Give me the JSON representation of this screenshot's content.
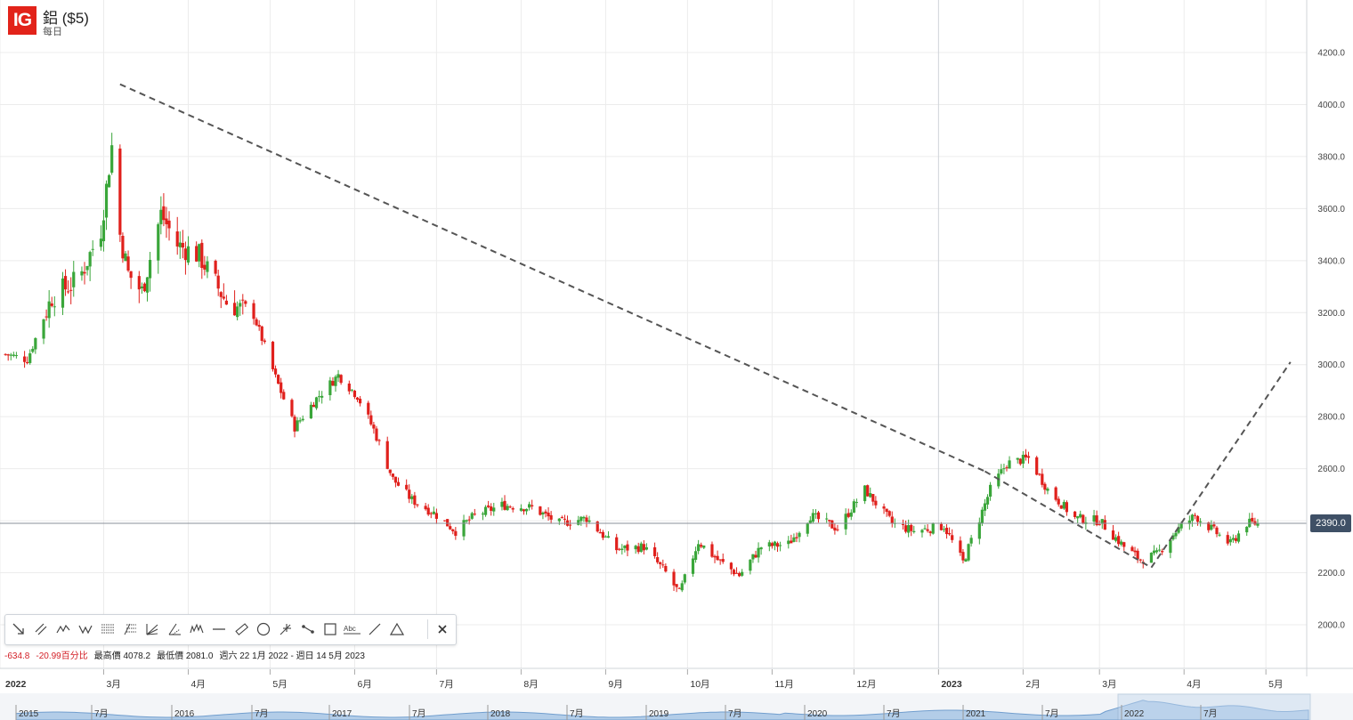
{
  "header": {
    "logo_text": "IG",
    "title": "鋁 ($5)",
    "interval": "每日"
  },
  "toolbar": {
    "tools": [
      "arrow-line-icon",
      "parallel-channel-icon",
      "zigzag-icon",
      "triangle-pattern-icon",
      "fib-retracement-icon",
      "fib-extension-icon",
      "fib-fan-icon",
      "gann-fan-icon",
      "elliott-wave-icon",
      "horizontal-line-icon",
      "ruler-icon",
      "circle-icon",
      "pitchfork-icon",
      "trend-line-icon",
      "rectangle-icon",
      "text-note-icon",
      "line-segment-icon",
      "triangle-icon"
    ],
    "text_tool_label": "Abc",
    "close_icon": "close-icon"
  },
  "stats": {
    "change": "-634.8",
    "change_pct": "-20.99百分比",
    "high": "最高價 4078.2",
    "low": "最低價 2081.0",
    "range": "週六 22 1月 2022 - 週日 14 5月 2023"
  },
  "current_price": "2390.0",
  "colors": {
    "up": "#3aa63a",
    "down": "#e0201c",
    "logo": "#e2231a",
    "price_tag": "#3f5066",
    "trendline": "#555555",
    "navigator_area": "#a9c7e6"
  },
  "navigator": {
    "labels": [
      "2015",
      "7月",
      "2016",
      "7月",
      "2017",
      "7月",
      "2018",
      "7月",
      "2019",
      "7月",
      "2020",
      "7月",
      "2021",
      "7月",
      "2022",
      "7月"
    ],
    "selected_range": "2022 - 2023"
  },
  "chart_data": {
    "type": "candlestick",
    "title": "鋁 ($5)",
    "interval": "每日",
    "x_tick_labels": [
      "2022",
      "3月",
      "4月",
      "5月",
      "6月",
      "7月",
      "8月",
      "9月",
      "10月",
      "11月",
      "12月",
      "2023",
      "2月",
      "3月",
      "4月",
      "5月"
    ],
    "y_ticks": [
      "2000.0",
      "2200.0",
      "2400.0",
      "2600.0",
      "2800.0",
      "3000.0",
      "3200.0",
      "3400.0",
      "3600.0",
      "3800.0",
      "4000.0",
      "4200.0"
    ],
    "ylim": [
      1880,
      4320
    ],
    "x_range": [
      "2022-01-22",
      "2023-05-14"
    ],
    "high": 4078.2,
    "low": 2081.0,
    "last_price": 2390.0,
    "change": -634.8,
    "change_pct": -20.99,
    "series": [
      {
        "name": "close",
        "x": [
          "2022-01-24",
          "2022-02-01",
          "2022-02-10",
          "2022-02-20",
          "2022-02-28",
          "2022-03-04",
          "2022-03-07",
          "2022-03-10",
          "2022-03-15",
          "2022-03-22",
          "2022-03-28",
          "2022-04-05",
          "2022-04-15",
          "2022-04-25",
          "2022-05-03",
          "2022-05-10",
          "2022-05-18",
          "2022-05-26",
          "2022-06-02",
          "2022-06-08",
          "2022-06-15",
          "2022-06-22",
          "2022-06-30",
          "2022-07-08",
          "2022-07-15",
          "2022-07-25",
          "2022-08-05",
          "2022-08-15",
          "2022-08-25",
          "2022-09-05",
          "2022-09-15",
          "2022-09-23",
          "2022-09-28",
          "2022-10-05",
          "2022-10-12",
          "2022-10-20",
          "2022-10-28",
          "2022-11-07",
          "2022-11-15",
          "2022-11-25",
          "2022-12-05",
          "2022-12-15",
          "2022-12-23",
          "2023-01-03",
          "2023-01-10",
          "2023-01-20",
          "2023-01-26",
          "2023-02-03",
          "2023-02-10",
          "2023-02-20",
          "2023-03-01",
          "2023-03-10",
          "2023-03-16",
          "2023-03-22",
          "2023-03-29",
          "2023-04-05",
          "2023-04-12",
          "2023-04-18",
          "2023-04-24",
          "2023-04-28"
        ],
        "values": [
          3040,
          3020,
          3260,
          3330,
          3520,
          3840,
          3500,
          3350,
          3280,
          3580,
          3460,
          3420,
          3240,
          3190,
          2950,
          2760,
          2870,
          2960,
          2880,
          2750,
          2560,
          2480,
          2430,
          2360,
          2420,
          2460,
          2450,
          2390,
          2410,
          2290,
          2300,
          2200,
          2120,
          2320,
          2250,
          2190,
          2300,
          2310,
          2420,
          2370,
          2520,
          2390,
          2360,
          2380,
          2240,
          2520,
          2620,
          2640,
          2520,
          2410,
          2400,
          2300,
          2250,
          2270,
          2360,
          2420,
          2360,
          2310,
          2390,
          2390
        ]
      }
    ],
    "annotations": [
      {
        "type": "dashed-trendline",
        "from": [
          "2022-03-07",
          4078
        ],
        "to": [
          "2023-01-18",
          2590
        ]
      },
      {
        "type": "dashed-trendline",
        "from": [
          "2023-01-18",
          2590
        ],
        "to": [
          "2023-03-20",
          2220
        ]
      },
      {
        "type": "dashed-trendline",
        "from": [
          "2023-03-20",
          2220
        ],
        "to": [
          "2023-05-10",
          3010
        ]
      }
    ]
  }
}
